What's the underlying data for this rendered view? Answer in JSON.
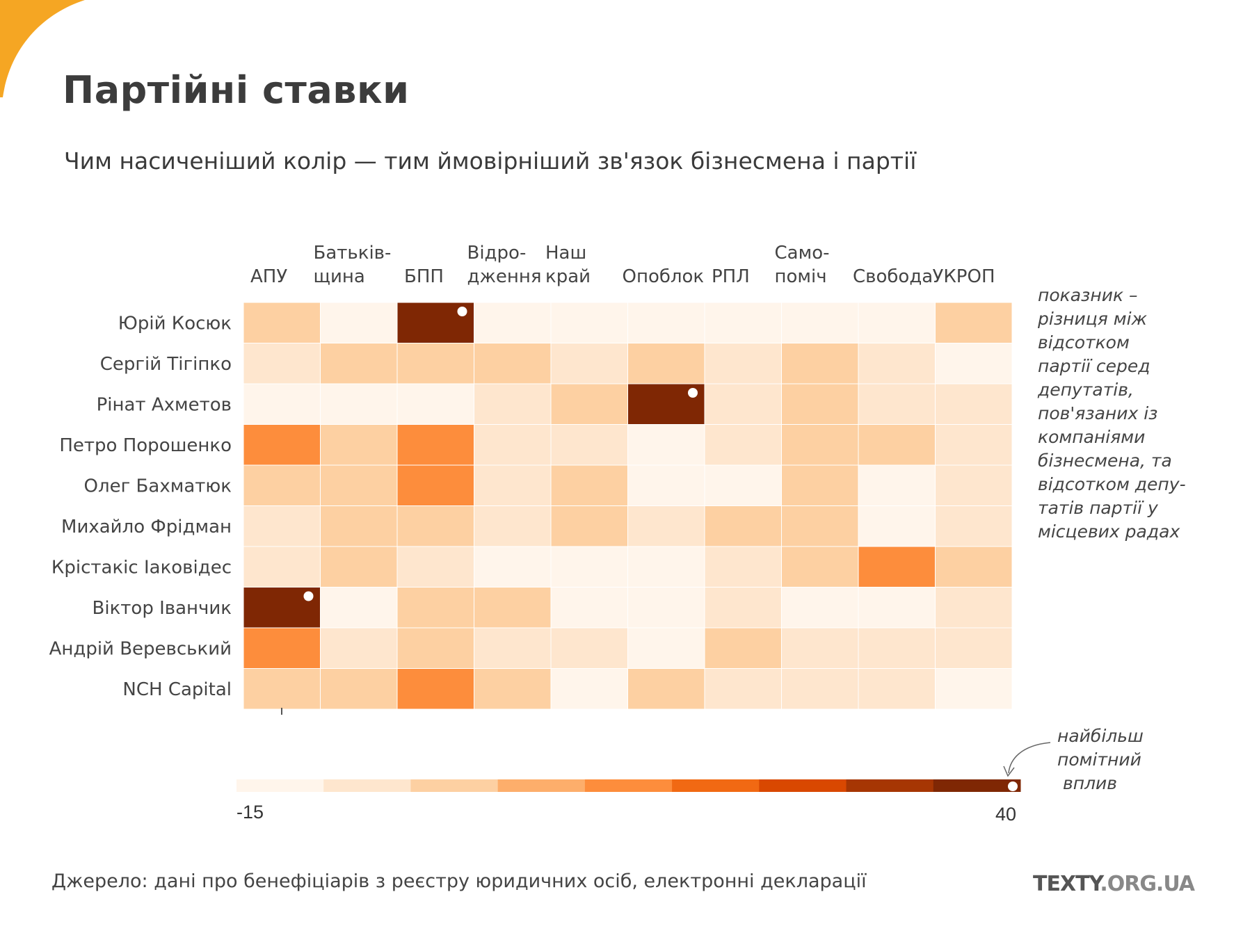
{
  "title": "Партійні ставки",
  "subtitle": "Чим насиченіший колір — тим ймовірніший зв'язок бізнесмена і партії",
  "note_lines": [
    "показник –",
    "різниця між",
    "відсотком",
    "партії серед",
    "депутатів,",
    "пов'язаних із",
    "компаніями",
    "бізнесмена, та",
    "відсотком депу-",
    "татів партії у",
    "місцевих радах"
  ],
  "callout_lines": [
    "найбільш",
    "помітний",
    "вплив"
  ],
  "source": "Джерело: дані про бенефіціарів з реєстру юридичних осіб, електронні декларації",
  "brand": {
    "main": "TEXTY",
    "tld": ".ORG.UA"
  },
  "colors": {
    "accent": "#f5a623",
    "scale": [
      "#fff5eb",
      "#fee6ce",
      "#fdd0a2",
      "#fdae6b",
      "#fd8d3c",
      "#f16913",
      "#d94801",
      "#a63603",
      "#7f2704"
    ],
    "marker": "#ffffff"
  },
  "chart_data": {
    "type": "heatmap",
    "columns": [
      [
        "АПУ"
      ],
      [
        "Батьків-",
        "щина"
      ],
      [
        "БПП"
      ],
      [
        "Відро-",
        "дження"
      ],
      [
        "Наш",
        "край"
      ],
      [
        "Опоблок"
      ],
      [
        "РПЛ"
      ],
      [
        "Само-",
        "поміч"
      ],
      [
        "Свобода"
      ],
      [
        "УКРОП"
      ]
    ],
    "rows": [
      "Юрій Косюк",
      "Сергій Тігіпко",
      "Рінат Ахметов",
      "Петро Порошенко",
      "Олег Бахматюк",
      "Михайло Фрідман",
      "Крістакіс Іаковідес",
      "Віктор Іванчик",
      "Андрій Веревський",
      "NCH Capital"
    ],
    "scale_min": -15,
    "scale_max": 40,
    "color_bins": 9,
    "values": [
      [
        3,
        -12,
        34,
        -9,
        -9,
        -12,
        -12,
        -9,
        -9,
        1
      ],
      [
        -4,
        3,
        3,
        1,
        -4,
        3,
        -4,
        1,
        -4,
        -12
      ],
      [
        -9,
        -9,
        -15,
        -4,
        1,
        40,
        -4,
        1,
        -4,
        -4
      ],
      [
        13,
        1,
        13,
        -4,
        -4,
        -12,
        -4,
        1,
        1,
        -4
      ],
      [
        1,
        3,
        13,
        -4,
        1,
        -9,
        -9,
        3,
        -9,
        -4
      ],
      [
        -4,
        1,
        1,
        -4,
        1,
        -4,
        1,
        1,
        -9,
        -4
      ],
      [
        -4,
        1,
        -4,
        -9,
        -12,
        -15,
        -4,
        1,
        13,
        3
      ],
      [
        40,
        -12,
        1,
        1,
        -12,
        -12,
        -4,
        -9,
        -12,
        -4
      ],
      [
        13,
        -4,
        3,
        -4,
        -4,
        -12,
        1,
        -4,
        -4,
        -4
      ],
      [
        1,
        1,
        13,
        1,
        -9,
        1,
        -4,
        -4,
        -4,
        -9
      ]
    ],
    "markers": [
      {
        "row": "Юрій Косюк",
        "column": "БПП"
      },
      {
        "row": "Рінат Ахметов",
        "column": "Опоблок"
      },
      {
        "row": "Віктор Іванчик",
        "column": "АПУ"
      }
    ],
    "legend": {
      "min_label": "-15",
      "max_label": "40",
      "placement": "bottom"
    }
  }
}
